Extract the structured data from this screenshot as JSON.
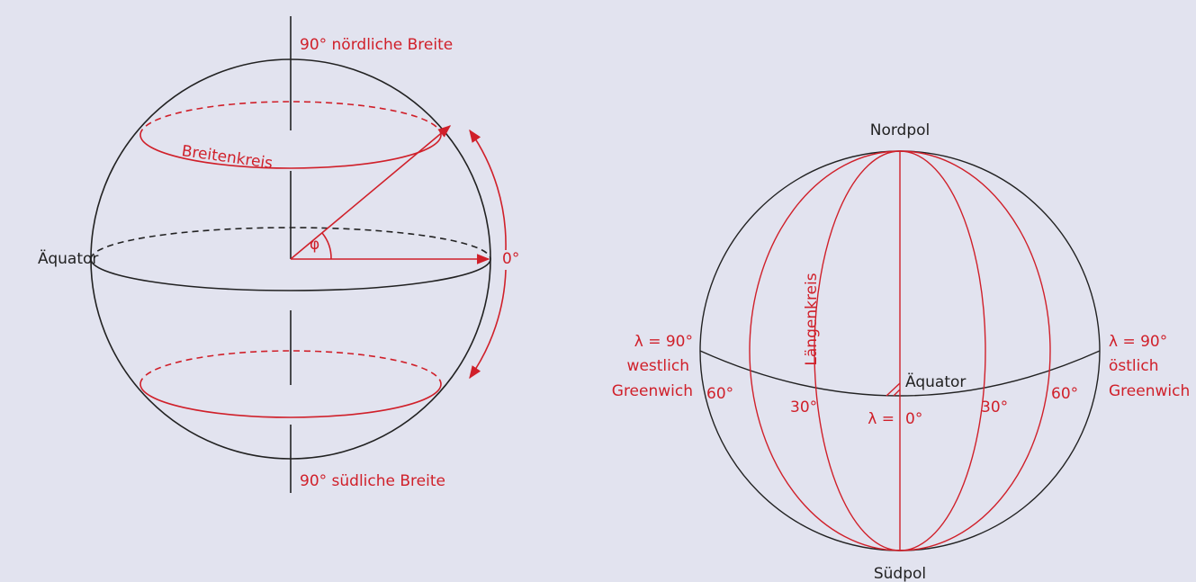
{
  "left": {
    "north": "90° nördliche Breite",
    "south": "90° südliche Breite",
    "circle": "Breitenkreis",
    "equator": "Äquator",
    "angle": "φ",
    "zero": "0°"
  },
  "right": {
    "north_pole": "Nordpol",
    "south_pole": "Südpol",
    "meridian": "Längenkreis",
    "equator": "Äquator",
    "west": [
      "λ = 90°",
      "westlich",
      "Greenwich"
    ],
    "east": [
      "λ = 90°",
      "östlich",
      "Greenwich"
    ],
    "degrees": [
      "60°",
      "30°",
      "30°",
      "60°"
    ],
    "lambda": "λ =",
    "zero": "0°"
  }
}
